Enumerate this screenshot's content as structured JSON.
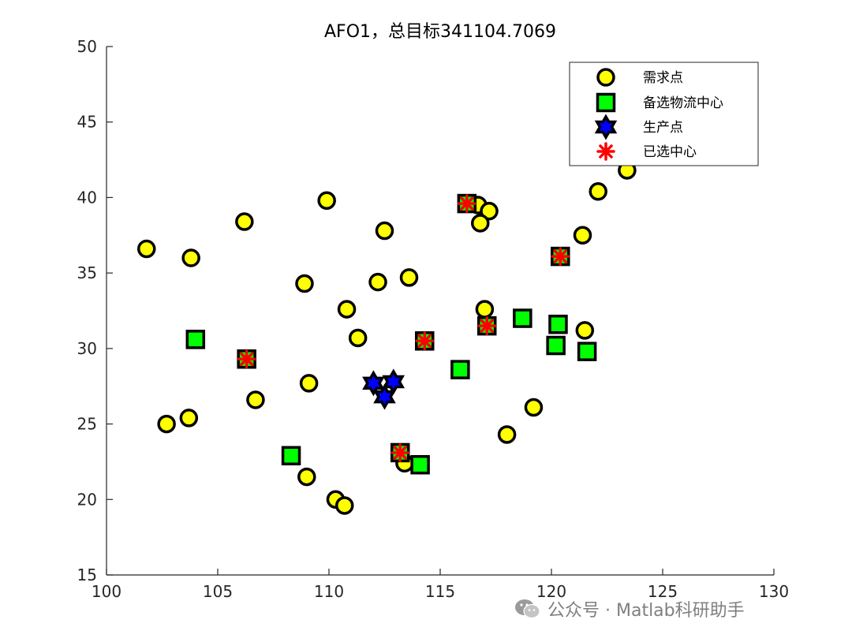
{
  "chart_data": {
    "type": "scatter",
    "title": "AFO1，总目标341104.7069",
    "xlim": [
      100,
      130
    ],
    "ylim": [
      15,
      50
    ],
    "xticks": [
      "100",
      "105",
      "110",
      "115",
      "120",
      "125",
      "130"
    ],
    "yticks": [
      "15",
      "20",
      "25",
      "30",
      "35",
      "40",
      "45",
      "50"
    ],
    "grid": false,
    "legend_position": "top-right",
    "series": [
      {
        "name": "需求点",
        "marker": "circle",
        "face_color": "#ffff00",
        "edge_color": "#000000",
        "points": [
          [
            101.8,
            36.6
          ],
          [
            103.8,
            36.0
          ],
          [
            106.2,
            38.4
          ],
          [
            109.9,
            39.8
          ],
          [
            112.5,
            37.8
          ],
          [
            108.9,
            34.3
          ],
          [
            112.2,
            34.4
          ],
          [
            113.6,
            34.7
          ],
          [
            110.8,
            32.6
          ],
          [
            111.3,
            30.7
          ],
          [
            102.7,
            25.0
          ],
          [
            103.7,
            25.4
          ],
          [
            106.7,
            26.6
          ],
          [
            109.1,
            27.7
          ],
          [
            109.0,
            21.5
          ],
          [
            110.3,
            20.0
          ],
          [
            110.7,
            19.6
          ],
          [
            113.4,
            22.4
          ],
          [
            116.7,
            39.5
          ],
          [
            117.2,
            39.1
          ],
          [
            116.8,
            38.3
          ],
          [
            117.0,
            32.6
          ],
          [
            121.4,
            37.5
          ],
          [
            122.1,
            40.4
          ],
          [
            123.4,
            41.8
          ],
          [
            121.5,
            31.2
          ],
          [
            119.2,
            26.1
          ],
          [
            118.0,
            24.3
          ]
        ]
      },
      {
        "name": "备选物流中心",
        "marker": "square",
        "face_color": "#00ff00",
        "edge_color": "#000000",
        "points": [
          [
            104.0,
            30.6
          ],
          [
            106.3,
            29.3
          ],
          [
            108.3,
            22.9
          ],
          [
            113.2,
            23.1
          ],
          [
            114.1,
            22.3
          ],
          [
            114.3,
            30.5
          ],
          [
            115.9,
            28.6
          ],
          [
            116.2,
            39.6
          ],
          [
            117.1,
            31.5
          ],
          [
            118.7,
            32.0
          ],
          [
            120.2,
            30.2
          ],
          [
            120.3,
            31.6
          ],
          [
            120.4,
            36.1
          ],
          [
            121.6,
            29.8
          ]
        ]
      },
      {
        "name": "生产点",
        "marker": "hexagram",
        "face_color": "#0000ff",
        "edge_color": "#000000",
        "points": [
          [
            112.0,
            27.7
          ],
          [
            112.9,
            27.8
          ],
          [
            112.5,
            26.8
          ]
        ]
      },
      {
        "name": "已选中心",
        "marker": "asterisk",
        "face_color": "#ff0000",
        "edge_color": "#ff0000",
        "points": [
          [
            106.3,
            29.3
          ],
          [
            113.2,
            23.1
          ],
          [
            114.3,
            30.5
          ],
          [
            116.2,
            39.6
          ],
          [
            117.1,
            31.5
          ],
          [
            120.4,
            36.1
          ]
        ]
      }
    ]
  },
  "watermark": {
    "text": "公众号 · Matlab科研助手",
    "icon": "wechat-icon"
  }
}
